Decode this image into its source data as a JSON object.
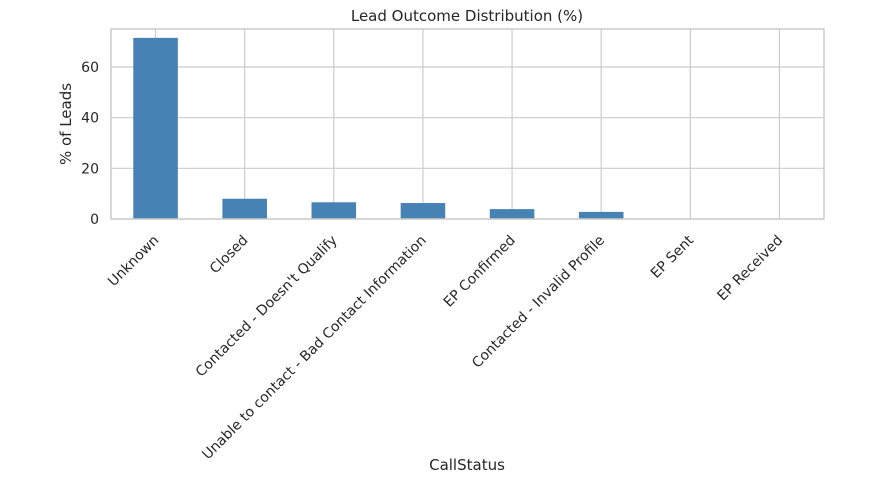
{
  "chart_data": {
    "type": "bar",
    "title": "Lead Outcome Distribution (%)",
    "xlabel": "CallStatus",
    "ylabel": "% of Leads",
    "categories": [
      "Unknown",
      "Closed",
      "Contacted - Doesn't Qualify",
      "Unable to contact - Bad Contact Information",
      "EP Confirmed",
      "Contacted - Invalid Profile",
      "EP Sent",
      "EP Received"
    ],
    "values": [
      71.5,
      8.0,
      6.6,
      6.3,
      3.9,
      2.8,
      0.1,
      0.05
    ],
    "ylim": [
      0,
      75
    ],
    "yticks": [
      0,
      20,
      40,
      60
    ],
    "grid": true,
    "bar_color": "#4682b4",
    "grid_color": "#cccccc",
    "spine_color": "#cccccc"
  }
}
